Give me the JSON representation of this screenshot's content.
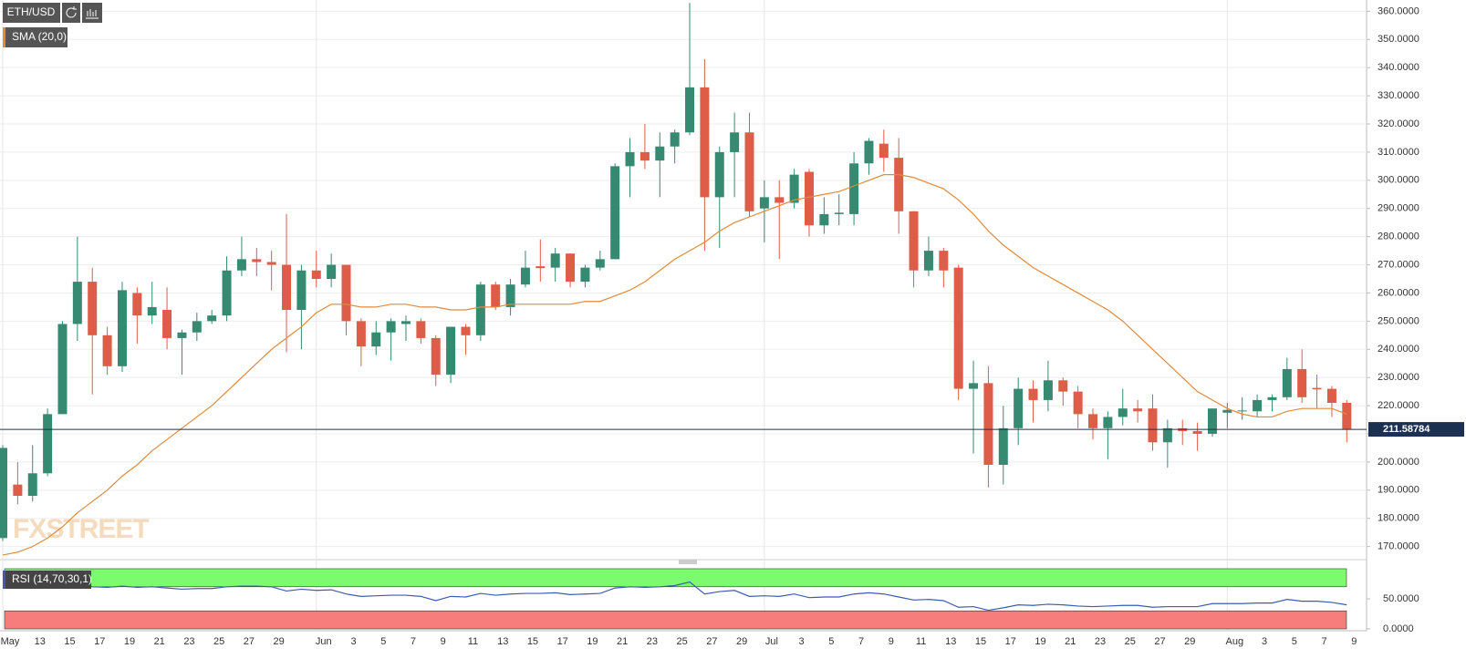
{
  "chart_data": [
    {
      "type": "candlestick",
      "title": "ETH/USD",
      "watermark": "FXSTREET",
      "categories": [
        "May",
        null,
        "13",
        null,
        "15",
        null,
        "17",
        null,
        "19",
        null,
        "21",
        null,
        "23",
        null,
        "25",
        null,
        "27",
        null,
        "29",
        null,
        null,
        "Jun",
        null,
        "3",
        null,
        "5",
        null,
        "7",
        null,
        "9",
        null,
        "11",
        null,
        "13",
        null,
        "15",
        null,
        "17",
        null,
        "19",
        null,
        "21",
        null,
        "23",
        null,
        "25",
        null,
        "27",
        null,
        "29",
        null,
        "Jul",
        null,
        "3",
        null,
        "5",
        null,
        "7",
        null,
        "9",
        null,
        "11",
        null,
        "13",
        null,
        "15",
        null,
        "17",
        null,
        "19",
        null,
        "21",
        null,
        "23",
        null,
        "25",
        null,
        "27",
        null,
        "29",
        null,
        null,
        "Aug",
        null,
        "3",
        null,
        "5",
        null,
        "7",
        null,
        "9"
      ],
      "open": [
        173,
        192,
        188,
        196,
        217,
        249,
        264,
        245,
        234,
        260,
        252,
        254,
        244,
        246,
        250,
        252,
        268,
        272,
        271,
        270,
        254,
        268,
        265,
        270,
        250,
        241,
        246,
        249,
        250,
        244,
        231,
        248,
        245,
        263,
        255,
        263,
        269.5,
        269,
        274,
        264,
        269,
        272,
        305,
        310,
        307,
        312,
        317,
        333,
        294,
        310,
        317,
        290,
        294,
        292,
        303,
        284,
        288,
        288,
        306,
        313,
        308,
        289,
        268,
        275,
        269,
        226,
        228,
        199,
        212,
        226,
        222,
        229,
        225,
        217,
        212,
        216,
        219,
        219,
        207,
        212,
        211,
        210,
        217.5,
        218,
        218,
        222,
        223,
        233,
        226.3,
        226,
        221
      ],
      "high": [
        206,
        200,
        206,
        219,
        250,
        280,
        269,
        248,
        264,
        262,
        264,
        262,
        247,
        253,
        254,
        273,
        280,
        276,
        275,
        288,
        270,
        275,
        274,
        270,
        251,
        250,
        251,
        252,
        251,
        245,
        248,
        249,
        264,
        264,
        265,
        275,
        279,
        276,
        274,
        270,
        275,
        306,
        315,
        320,
        317,
        318,
        363,
        343,
        312,
        324,
        324,
        300,
        300,
        304,
        304,
        294,
        295,
        310,
        315,
        318,
        315,
        289,
        280,
        276,
        270,
        236,
        234,
        220,
        230,
        229,
        236,
        230,
        227,
        219,
        218,
        226,
        222,
        224,
        215,
        215,
        214,
        219,
        221,
        223,
        224,
        224,
        237,
        240,
        231,
        227,
        222
      ],
      "low": [
        172,
        185,
        186,
        195,
        217,
        243,
        224,
        231,
        232,
        242,
        249,
        240,
        231,
        243,
        249,
        250,
        266,
        266,
        261,
        239,
        240,
        262,
        262,
        245,
        234,
        238,
        236,
        243,
        242,
        227,
        228,
        238,
        243,
        254,
        252,
        262,
        264,
        264,
        262,
        262,
        268,
        272,
        294,
        304,
        294,
        306,
        316,
        275,
        276,
        294,
        287,
        278,
        272,
        290,
        280,
        281,
        284,
        284,
        302,
        303,
        281,
        262,
        266,
        262,
        222,
        203,
        191,
        192,
        206,
        214,
        218,
        220,
        212,
        208,
        201,
        213,
        214,
        204,
        198,
        206,
        204,
        209,
        212,
        215,
        216,
        218,
        222,
        221,
        219,
        216,
        207
      ],
      "close": [
        205,
        188,
        196,
        217,
        249,
        264,
        245,
        234,
        261,
        252,
        255,
        244,
        246,
        250,
        252,
        268,
        272,
        271,
        270,
        254,
        268,
        265,
        270,
        250,
        241,
        246,
        250,
        250,
        244,
        231,
        248,
        245,
        263,
        255,
        263,
        269,
        268.8,
        274,
        264,
        269,
        272,
        305,
        310,
        307,
        312,
        317,
        333,
        294,
        310,
        317,
        289,
        294,
        292,
        302,
        284,
        288,
        288.5,
        306,
        314,
        308,
        289,
        268,
        275,
        268,
        226,
        228,
        199,
        212,
        226,
        222,
        229,
        225,
        217,
        212,
        216,
        219,
        218,
        207,
        212,
        211,
        210,
        219,
        218.5,
        218.3,
        222,
        223,
        233,
        223,
        225.8,
        221,
        211.6
      ],
      "up_color": "#368a71",
      "down_color": "#dd5d48",
      "overlay": {
        "name": "SMA (20,0)",
        "color": "#e08a3c",
        "values": [
          167,
          168,
          170,
          173,
          177,
          182,
          186,
          190,
          195,
          199,
          204,
          208,
          212,
          216,
          220,
          225,
          230,
          235,
          240,
          244,
          248,
          253,
          256,
          256,
          255,
          255,
          256,
          256,
          255,
          255,
          254,
          254,
          255,
          255,
          256,
          256,
          256,
          256,
          256,
          257,
          257,
          259,
          261,
          264,
          268,
          272,
          275,
          278,
          282,
          285,
          287,
          289,
          291,
          293,
          294,
          295,
          296,
          298,
          300,
          302,
          302,
          301,
          299,
          297,
          293,
          288,
          282,
          277,
          273,
          269,
          266,
          263,
          260,
          257,
          254,
          250,
          245,
          240,
          235,
          230,
          225,
          222,
          219,
          217,
          216,
          216,
          218,
          219,
          219,
          219,
          217
        ]
      },
      "last_price": 211.58784,
      "ylim": [
        166,
        364
      ],
      "yticks": [
        {
          "value": 170,
          "label": "170.0000"
        },
        {
          "value": 180,
          "label": "180.0000"
        },
        {
          "value": 190,
          "label": "190.0000"
        },
        {
          "value": 200,
          "label": "200.0000"
        },
        {
          "value": 210,
          "label": "210.0000"
        },
        {
          "value": 220,
          "label": "220.0000"
        },
        {
          "value": 230,
          "label": "230.0000"
        },
        {
          "value": 240,
          "label": "240.0000"
        },
        {
          "value": 250,
          "label": "250.0000"
        },
        {
          "value": 260,
          "label": "260.0000"
        },
        {
          "value": 270,
          "label": "270.0000"
        },
        {
          "value": 280,
          "label": "280.0000"
        },
        {
          "value": 290,
          "label": "290.0000"
        },
        {
          "value": 300,
          "label": "300.0000"
        },
        {
          "value": 310,
          "label": "310.0000"
        },
        {
          "value": 320,
          "label": "320.0000"
        },
        {
          "value": 330,
          "label": "330.0000"
        },
        {
          "value": 340,
          "label": "340.0000"
        },
        {
          "value": 350,
          "label": "350.0000"
        },
        {
          "value": 360,
          "label": "360.0000"
        }
      ],
      "grid": true
    },
    {
      "type": "line",
      "name": "RSI (14,70,30,1)",
      "color": "#3d5cb0",
      "values": [
        71,
        70,
        71,
        72,
        73,
        74,
        70,
        69,
        71,
        69,
        70,
        68,
        66,
        67,
        67,
        70,
        71,
        71,
        70,
        63,
        66,
        64,
        65,
        58,
        54,
        55,
        56,
        56,
        54,
        47,
        54,
        53,
        59,
        56,
        58,
        59,
        59,
        60,
        57,
        58,
        59,
        68,
        70,
        69,
        70,
        72,
        78,
        58,
        62,
        64,
        54,
        55,
        54,
        58,
        52,
        53,
        53,
        58,
        60,
        58,
        53,
        48,
        49,
        47,
        36,
        37,
        31,
        35,
        40,
        39,
        41,
        40,
        38,
        37,
        38,
        39,
        39,
        36,
        37,
        37,
        37,
        42,
        42,
        42,
        43,
        43,
        49,
        46,
        46,
        44,
        40
      ],
      "ylim": [
        0,
        100
      ],
      "yticks": [
        {
          "value": 0,
          "label": "0.0000"
        },
        {
          "value": 50,
          "label": "50.0000"
        }
      ],
      "bands": [
        {
          "from": 70,
          "to": 100,
          "color": "#7dfb6e"
        },
        {
          "from": 0,
          "to": 30,
          "color": "#f77c7c"
        }
      ]
    }
  ]
}
